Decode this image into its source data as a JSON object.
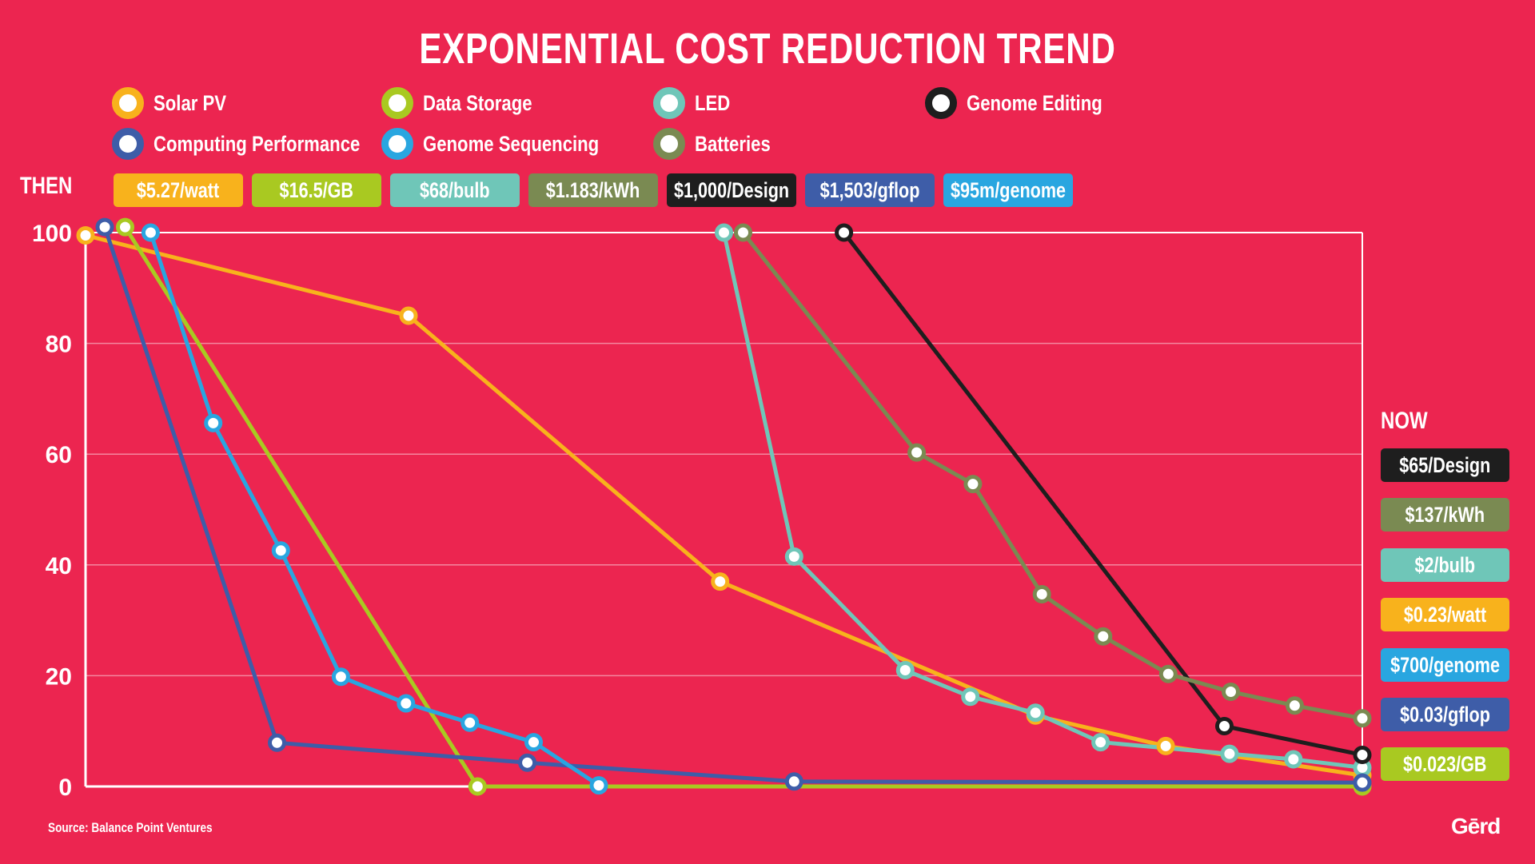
{
  "title": "EXPONENTIAL COST REDUCTION TREND",
  "then_label": "THEN",
  "now_label": "NOW",
  "source": "Source: Balance Point Ventures",
  "brand": "Gērd",
  "colors": {
    "background": "#EC2550",
    "solar": "#F8B21C",
    "storage": "#A9C921",
    "led": "#6FC6B8",
    "genome_editing": "#1E1E1E",
    "computing": "#3E5DA8",
    "genome_sequencing": "#29A6E0",
    "batteries": "#7A8A52"
  },
  "legend": [
    {
      "label": "Solar PV",
      "color": "#F8B21C",
      "icon": "circle-marker-icon"
    },
    {
      "label": "Data Storage",
      "color": "#A9C921",
      "icon": "circle-marker-icon"
    },
    {
      "label": "LED",
      "color": "#6FC6B8",
      "icon": "circle-marker-icon"
    },
    {
      "label": "Genome Editing",
      "color": "#1E1E1E",
      "icon": "circle-marker-icon"
    },
    {
      "label": "Computing Performance",
      "color": "#3E5DA8",
      "icon": "circle-marker-icon"
    },
    {
      "label": "Genome Sequencing",
      "color": "#29A6E0",
      "icon": "circle-marker-icon"
    },
    {
      "label": "Batteries",
      "color": "#7A8A52",
      "icon": "circle-marker-icon"
    }
  ],
  "then_badges": [
    {
      "text": "$5.27/watt",
      "color": "#F8B21C"
    },
    {
      "text": "$16.5/GB",
      "color": "#A9C921"
    },
    {
      "text": "$68/bulb",
      "color": "#6FC6B8"
    },
    {
      "text": "$1.183/kWh",
      "color": "#7A8A52"
    },
    {
      "text": "$1,000/Design",
      "color": "#1E1E1E"
    },
    {
      "text": "$1,503/gflop",
      "color": "#3E5DA8"
    },
    {
      "text": "$95m/genome",
      "color": "#29A6E0"
    }
  ],
  "now_badges": [
    {
      "text": "$65/Design",
      "color": "#1E1E1E"
    },
    {
      "text": "$137/kWh",
      "color": "#7A8A52"
    },
    {
      "text": "$2/bulb",
      "color": "#6FC6B8"
    },
    {
      "text": "$0.23/watt",
      "color": "#F8B21C"
    },
    {
      "text": "$700/genome",
      "color": "#29A6E0"
    },
    {
      "text": "$0.03/gflop",
      "color": "#3E5DA8"
    },
    {
      "text": "$0.023/GB",
      "color": "#A9C921"
    }
  ],
  "chart_data": {
    "type": "line",
    "title": "EXPONENTIAL COST REDUCTION TREND",
    "xlabel": "",
    "ylabel": "",
    "ylim": [
      0,
      100
    ],
    "xlim": [
      0,
      100
    ],
    "yticks": [
      0,
      20,
      40,
      60,
      80,
      100
    ],
    "grid": true,
    "legend_position": "top",
    "series": [
      {
        "name": "Solar PV",
        "color": "#F8B21C",
        "x": [
          0,
          25.3,
          49.7,
          74.4,
          84.6,
          100
        ],
        "y": [
          99.5,
          85,
          37,
          12.8,
          7.3,
          2
        ]
      },
      {
        "name": "Data Storage",
        "color": "#A9C921",
        "x": [
          3.1,
          30.7,
          100
        ],
        "y": [
          101,
          0,
          0
        ]
      },
      {
        "name": "LED",
        "color": "#6FC6B8",
        "x": [
          50,
          55.5,
          64.2,
          69.3,
          74.4,
          79.5,
          89.6,
          94.6,
          100
        ],
        "y": [
          100,
          41.5,
          21,
          16.2,
          13.3,
          8,
          5.9,
          4.9,
          3.4
        ]
      },
      {
        "name": "Genome Editing",
        "color": "#1E1E1E",
        "x": [
          59.4,
          89.2,
          100
        ],
        "y": [
          100,
          10.9,
          5.7
        ]
      },
      {
        "name": "Computing Performance",
        "color": "#3E5DA8",
        "x": [
          1.5,
          15,
          34.6,
          55.5,
          100
        ],
        "y": [
          101,
          7.9,
          4.3,
          0.9,
          0.7
        ]
      },
      {
        "name": "Genome Sequencing",
        "color": "#29A6E0",
        "x": [
          5.1,
          10,
          15.3,
          20,
          25.1,
          30.1,
          35.1,
          40.2
        ],
        "y": [
          100,
          65.6,
          42.6,
          19.8,
          15,
          11.5,
          8,
          0.2
        ]
      },
      {
        "name": "Batteries",
        "color": "#7A8A52",
        "x": [
          51.5,
          65.1,
          69.5,
          74.9,
          79.7,
          84.8,
          89.7,
          94.7,
          100
        ],
        "y": [
          100,
          60.3,
          54.6,
          34.7,
          27.1,
          20.3,
          17.1,
          14.6,
          12.3
        ]
      }
    ]
  }
}
